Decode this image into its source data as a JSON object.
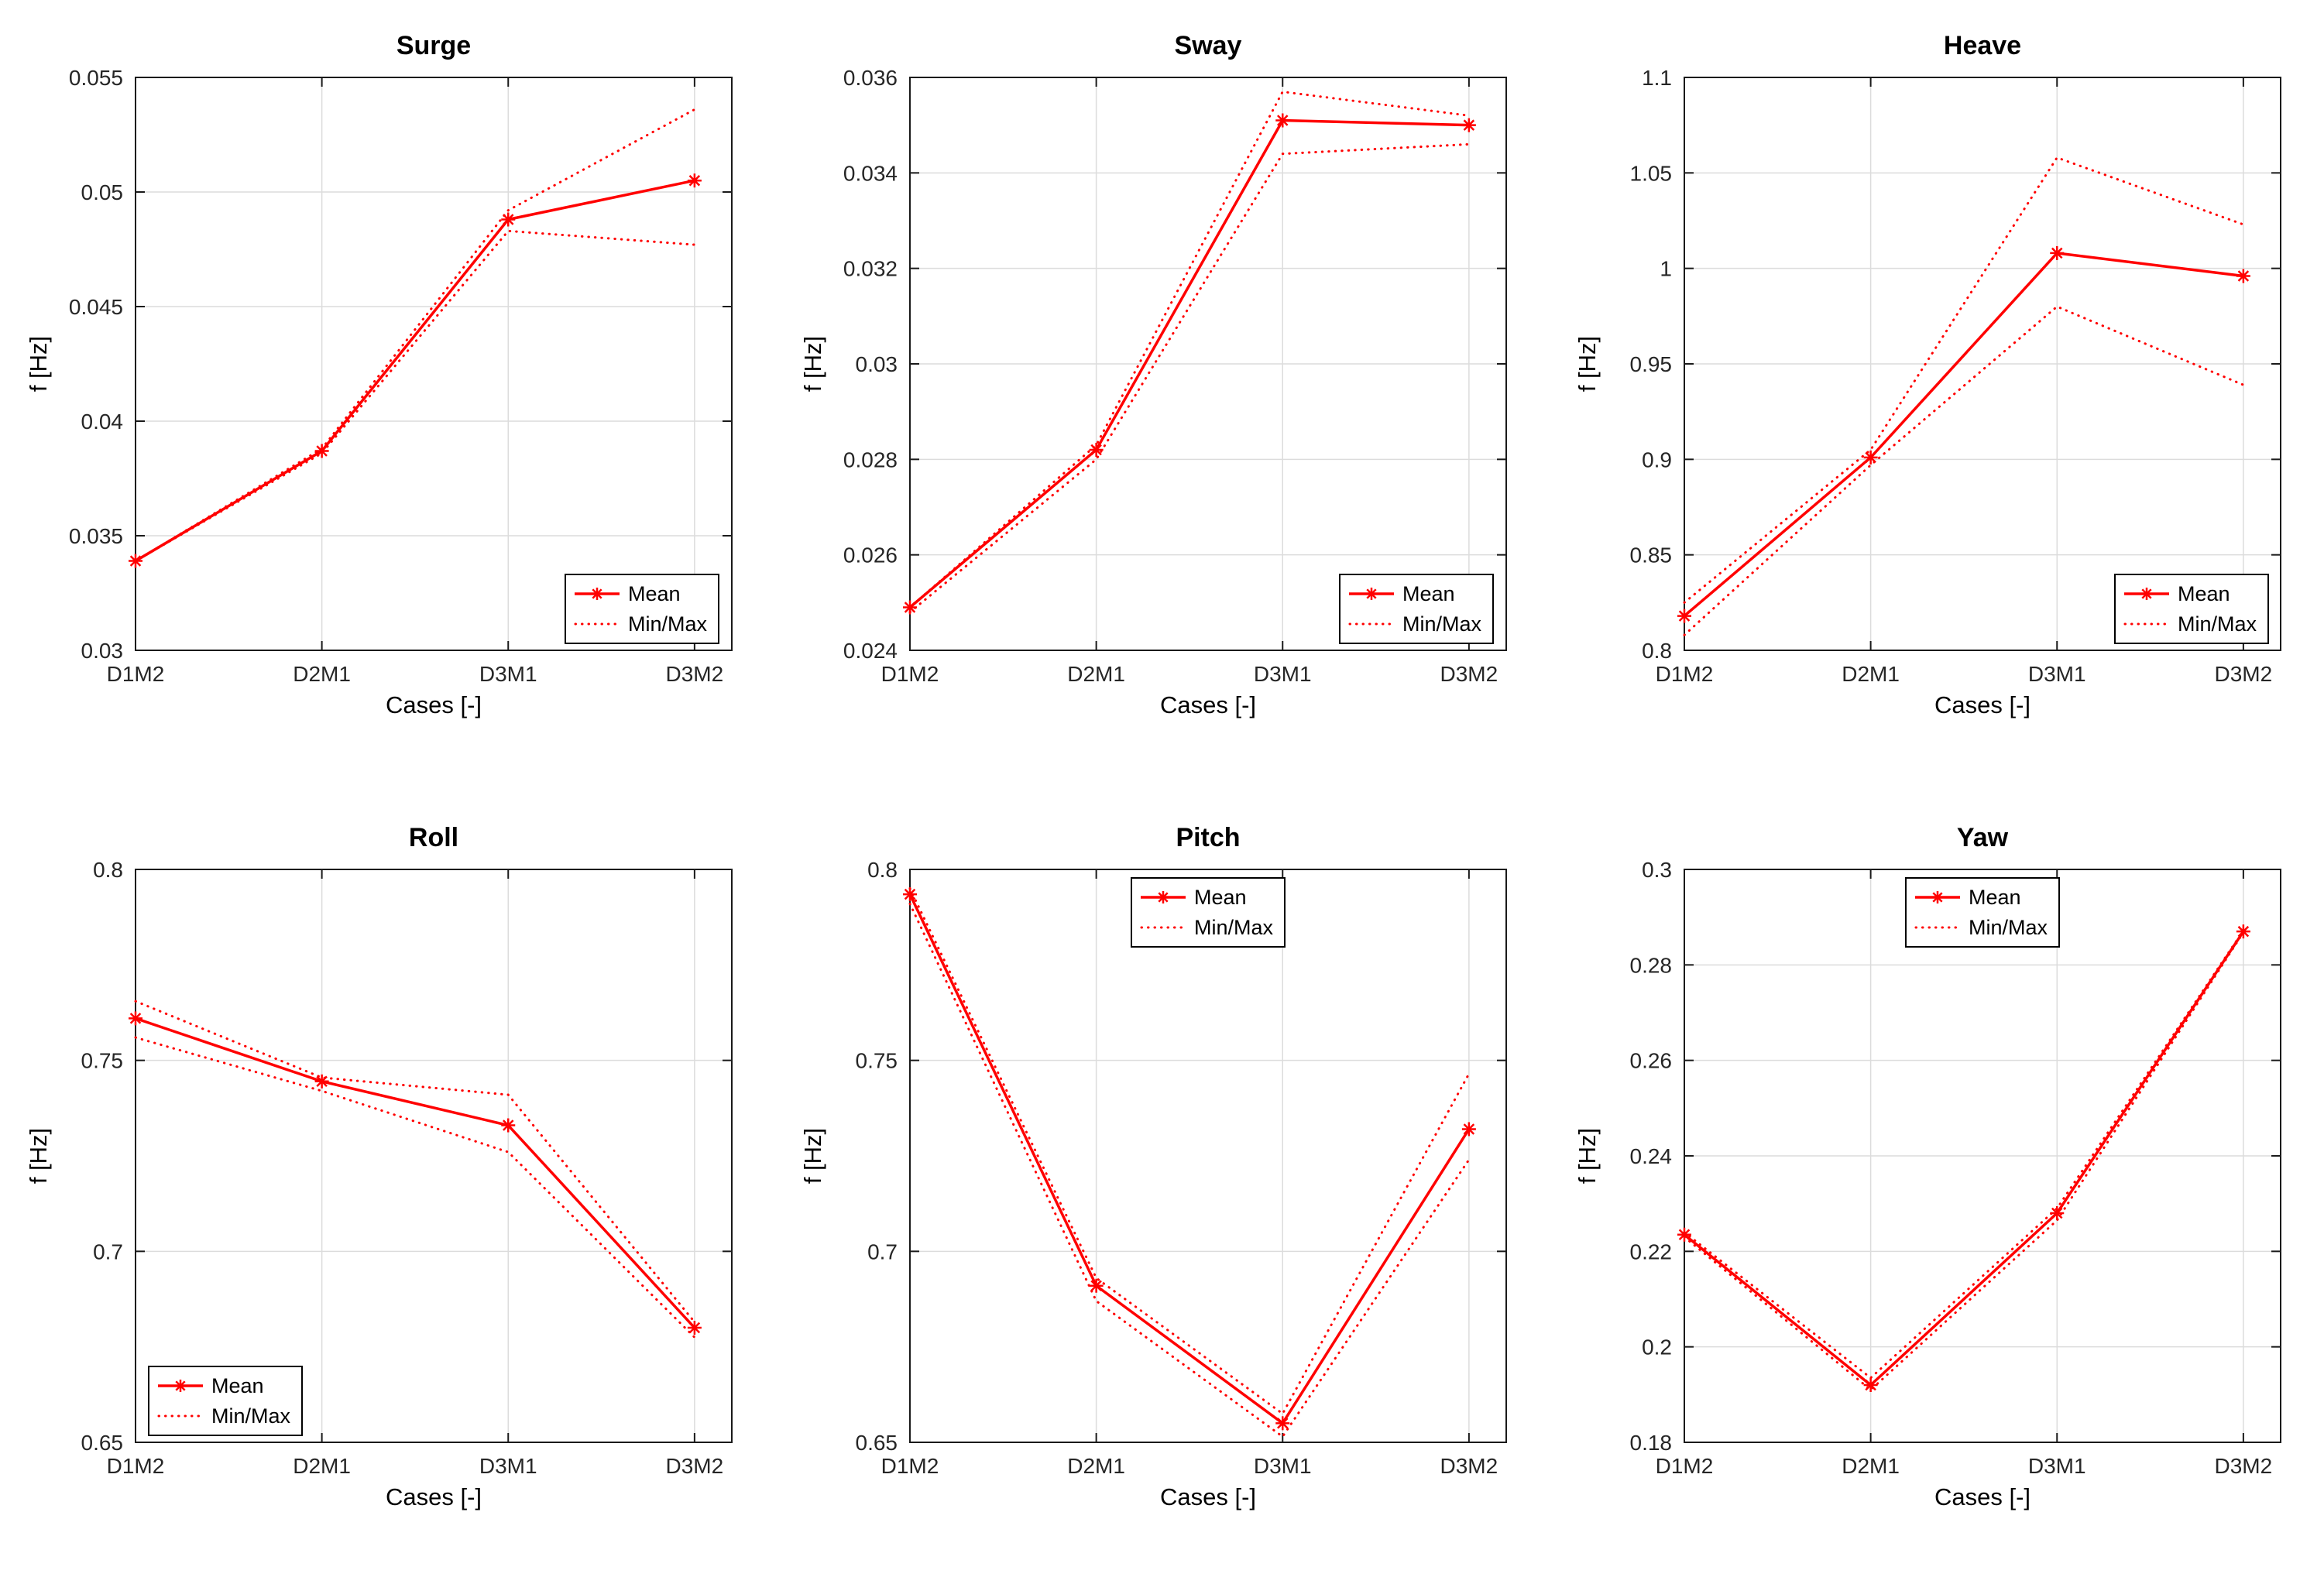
{
  "figure": {
    "background": "#ffffff"
  },
  "colors": {
    "series": "#ff0000",
    "grid": "#dcdcdc",
    "axis": "#1a1a1a",
    "text": "#262626"
  },
  "legend": {
    "mean_label": "Mean",
    "minmax_label": "Min/Max"
  },
  "chart_data": [
    {
      "type": "line",
      "title": "Surge",
      "xlabel": "Cases [-]",
      "ylabel": "f [Hz]",
      "categories": [
        "D1M2",
        "D2M1",
        "D3M1",
        "D3M2"
      ],
      "xlim": [
        1,
        4.2
      ],
      "ylim": [
        0.03,
        0.055
      ],
      "grid": true,
      "yticks": [
        0.03,
        0.035,
        0.04,
        0.045,
        0.05,
        0.055
      ],
      "ytick_labels": [
        "0.03",
        "0.035",
        "0.04",
        "0.045",
        "0.05",
        "0.055"
      ],
      "legend_position": "se",
      "series": {
        "mean": [
          0.0339,
          0.0387,
          0.0488,
          0.0505
        ],
        "max": [
          0.0339,
          0.0388,
          0.0492,
          0.0536
        ],
        "min": [
          0.0339,
          0.0386,
          0.0483,
          0.0477
        ]
      }
    },
    {
      "type": "line",
      "title": "Sway",
      "xlabel": "Cases [-]",
      "ylabel": "f [Hz]",
      "categories": [
        "D1M2",
        "D2M1",
        "D3M1",
        "D3M2"
      ],
      "xlim": [
        1,
        4.2
      ],
      "ylim": [
        0.024,
        0.036
      ],
      "grid": true,
      "yticks": [
        0.024,
        0.026,
        0.028,
        0.03,
        0.032,
        0.034,
        0.036
      ],
      "ytick_labels": [
        "0.024",
        "0.026",
        "0.028",
        "0.03",
        "0.032",
        "0.034",
        "0.036"
      ],
      "legend_position": "se",
      "series": {
        "mean": [
          0.0249,
          0.0282,
          0.0351,
          0.035
        ],
        "max": [
          0.0249,
          0.0283,
          0.0357,
          0.0352
        ],
        "min": [
          0.0248,
          0.028,
          0.0344,
          0.0346
        ]
      }
    },
    {
      "type": "line",
      "title": "Heave",
      "xlabel": "Cases [-]",
      "ylabel": "f [Hz]",
      "categories": [
        "D1M2",
        "D2M1",
        "D3M1",
        "D3M2"
      ],
      "xlim": [
        1,
        4.2
      ],
      "ylim": [
        0.8,
        1.1
      ],
      "grid": true,
      "yticks": [
        0.8,
        0.85,
        0.9,
        0.95,
        1,
        1.05,
        1.1
      ],
      "ytick_labels": [
        "0.8",
        "0.85",
        "0.9",
        "0.95",
        "1",
        "1.05",
        "1.1"
      ],
      "legend_position": "se",
      "series": {
        "mean": [
          0.818,
          0.901,
          1.008,
          0.996
        ],
        "max": [
          0.825,
          0.905,
          1.058,
          1.023
        ],
        "min": [
          0.808,
          0.897,
          0.98,
          0.939
        ]
      }
    },
    {
      "type": "line",
      "title": "Roll",
      "xlabel": "Cases [-]",
      "ylabel": "f [Hz]",
      "categories": [
        "D1M2",
        "D2M1",
        "D3M1",
        "D3M2"
      ],
      "xlim": [
        1,
        4.2
      ],
      "ylim": [
        0.65,
        0.8
      ],
      "grid": true,
      "yticks": [
        0.65,
        0.7,
        0.75,
        0.8
      ],
      "ytick_labels": [
        "0.65",
        "0.7",
        "0.75",
        "0.8"
      ],
      "legend_position": "sw",
      "series": {
        "mean": [
          0.761,
          0.7445,
          0.733,
          0.68
        ],
        "max": [
          0.7655,
          0.7455,
          0.741,
          0.6815
        ],
        "min": [
          0.756,
          0.742,
          0.726,
          0.6775
        ]
      }
    },
    {
      "type": "line",
      "title": "Pitch",
      "xlabel": "Cases [-]",
      "ylabel": "f [Hz]",
      "categories": [
        "D1M2",
        "D2M1",
        "D3M1",
        "D3M2"
      ],
      "xlim": [
        1,
        4.2
      ],
      "ylim": [
        0.65,
        0.8
      ],
      "grid": true,
      "yticks": [
        0.65,
        0.7,
        0.75,
        0.8
      ],
      "ytick_labels": [
        "0.65",
        "0.7",
        "0.75",
        "0.8"
      ],
      "legend_position": "n",
      "series": {
        "mean": [
          0.7935,
          0.691,
          0.655,
          0.732
        ],
        "max": [
          0.795,
          0.693,
          0.6575,
          0.7465
        ],
        "min": [
          0.791,
          0.687,
          0.6515,
          0.724
        ]
      }
    },
    {
      "type": "line",
      "title": "Yaw",
      "xlabel": "Cases [-]",
      "ylabel": "f [Hz]",
      "categories": [
        "D1M2",
        "D2M1",
        "D3M1",
        "D3M2"
      ],
      "xlim": [
        1,
        4.2
      ],
      "ylim": [
        0.18,
        0.3
      ],
      "grid": true,
      "yticks": [
        0.18,
        0.2,
        0.22,
        0.24,
        0.26,
        0.28,
        0.3
      ],
      "ytick_labels": [
        "0.18",
        "0.2",
        "0.22",
        "0.24",
        "0.26",
        "0.28",
        "0.3"
      ],
      "legend_position": "n",
      "series": {
        "mean": [
          0.2235,
          0.192,
          0.228,
          0.287
        ],
        "max": [
          0.224,
          0.1935,
          0.229,
          0.2872
        ],
        "min": [
          0.223,
          0.191,
          0.2265,
          0.2868
        ]
      }
    }
  ]
}
